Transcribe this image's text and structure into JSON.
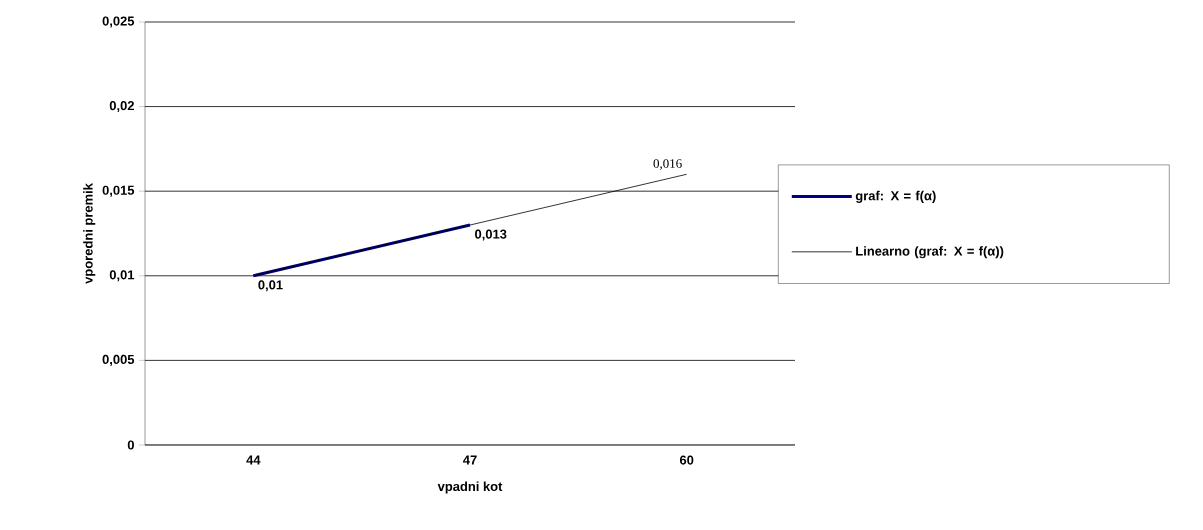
{
  "chart_data": {
    "type": "line",
    "xlabel": "vpadni kot",
    "ylabel": "vporedni premik",
    "categories": [
      "44",
      "47",
      "60"
    ],
    "series": [
      {
        "name": "graf: X = f(α)",
        "color": "#000080",
        "values": [
          0.01,
          0.013,
          null
        ],
        "value_labels": [
          "0,01",
          "0,013",
          null
        ]
      },
      {
        "name": "Linearno (graf: X = f(α))",
        "color": "#000000",
        "type": "line",
        "values": [
          0.01,
          0.013,
          0.016
        ],
        "value_labels": [
          null,
          null,
          "0,016"
        ]
      }
    ],
    "ylim": [
      0,
      0.025
    ],
    "yticks": [
      0,
      {
        "value": 0.005,
        "label": "0,005"
      },
      {
        "value": 0.01,
        "label": "0,01"
      },
      {
        "value": 0.015,
        "label": "0,015"
      },
      {
        "value": 0.02,
        "label": "0,02"
      },
      {
        "value": 0.025,
        "label": "0,025"
      }
    ],
    "grid": "y",
    "legend": "right",
    "marker": "none",
    "line_style": "solid"
  }
}
